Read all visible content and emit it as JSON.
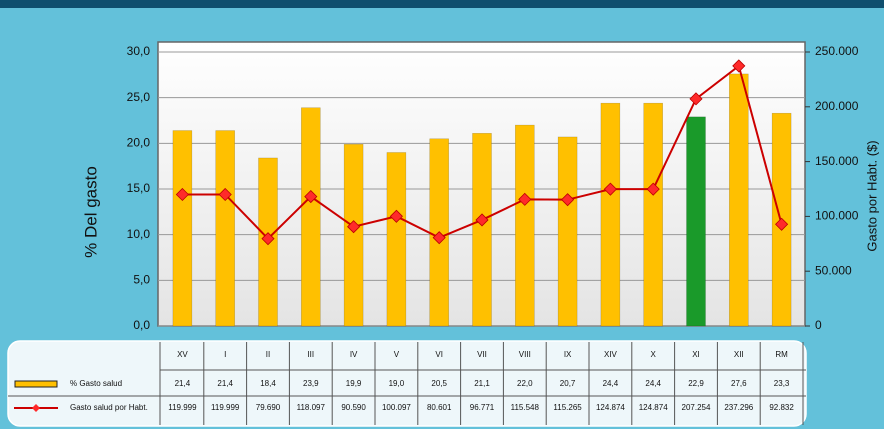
{
  "chart_data": {
    "type": "combo",
    "y_label": "% Del gasto",
    "y2_label": "Gasto por Habt. ($)",
    "categories": [
      "XV",
      "I",
      "II",
      "III",
      "IV",
      "V",
      "VI",
      "VII",
      "VIII",
      "IX",
      "XIV",
      "X",
      "XI",
      "XII",
      "RM"
    ],
    "series": [
      {
        "name": "% Gasto salud",
        "type": "bar",
        "color": "#ffc000",
        "colors": [
          "#ffc000",
          "#ffc000",
          "#ffc000",
          "#ffc000",
          "#ffc000",
          "#ffc000",
          "#ffc000",
          "#ffc000",
          "#ffc000",
          "#ffc000",
          "#ffc000",
          "#ffc000",
          "#1a9a2a",
          "#ffc000",
          "#ffc000"
        ],
        "values": [
          21.4,
          21.4,
          18.4,
          23.9,
          19.9,
          19.0,
          20.5,
          21.1,
          22.0,
          20.7,
          24.4,
          24.4,
          22.9,
          27.6,
          23.3
        ],
        "value_labels": [
          "21,4",
          "21,4",
          "18,4",
          "23,9",
          "19,9",
          "19,0",
          "20,5",
          "21,1",
          "22,0",
          "20,7",
          "24,4",
          "24,4",
          "22,9",
          "27,6",
          "23,3"
        ]
      },
      {
        "name": "Gasto salud por Habt.",
        "type": "line",
        "axis": "y2",
        "color": "#cc0000",
        "values": [
          119999,
          119999,
          79690,
          118097,
          90590,
          100097,
          80601,
          96771,
          115548,
          115265,
          124874,
          124874,
          207254,
          237296,
          92832
        ],
        "value_labels": [
          "119.999",
          "119.999",
          "79.690",
          "118.097",
          "90.590",
          "100.097",
          "80.601",
          "96.771",
          "115.548",
          "115.265",
          "124.874",
          "124.874",
          "207.254",
          "237.296",
          "92.832"
        ]
      }
    ],
    "ylim": [
      0,
      30
    ],
    "yticks": [
      {
        "value": 0,
        "label": "0,0"
      },
      {
        "value": 5,
        "label": "5,0"
      },
      {
        "value": 10,
        "label": "10,0"
      },
      {
        "value": 15,
        "label": "15,0"
      },
      {
        "value": 20,
        "label": "20,0"
      },
      {
        "value": 25,
        "label": "25,0"
      },
      {
        "value": 30,
        "label": "30,0"
      }
    ],
    "y2lim": [
      0,
      250000
    ],
    "y2ticks": [
      0,
      {
        "value": 50000,
        "label": "50.000"
      },
      {
        "value": 100000,
        "label": "100.000"
      },
      {
        "value": 150000,
        "label": "150.000"
      },
      {
        "value": 200000,
        "label": "200.000"
      },
      {
        "value": 250000,
        "label": "250.000"
      }
    ],
    "grid": true
  }
}
